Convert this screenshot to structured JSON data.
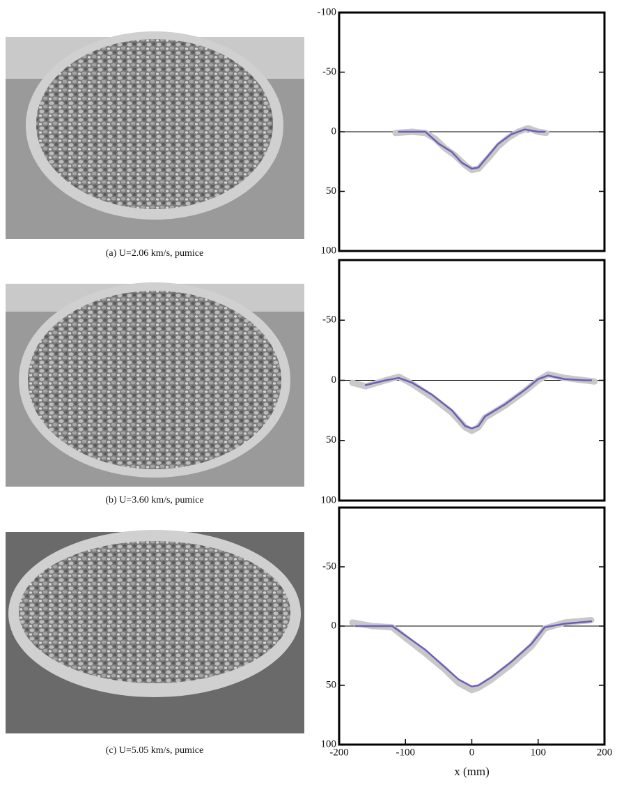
{
  "captions": [
    "(a) U=2.06 km/s, pumice",
    "(b) U=3.60 km/s, pumice",
    "(c) U=5.05 km/s, pumice"
  ],
  "chart_data": [
    {
      "type": "line",
      "xlim": [
        -200,
        200
      ],
      "ylim": [
        -100,
        100
      ],
      "y_inverted": true,
      "yticks": [
        -100,
        -50,
        0,
        50,
        100
      ],
      "hline": 0,
      "series": [
        {
          "color": "#c8c8c8",
          "x": [
            -115,
            -90,
            -70,
            -55,
            -40,
            -25,
            -10,
            0,
            10,
            25,
            40,
            55,
            70,
            85,
            100,
            112
          ],
          "values": [
            1,
            0,
            1,
            6,
            14,
            20,
            28,
            32,
            31,
            22,
            12,
            5,
            0,
            -3,
            0,
            1
          ]
        },
        {
          "color": "#6a5fb8",
          "x": [
            -110,
            -70,
            -50,
            -30,
            -15,
            0,
            10,
            25,
            40,
            60,
            80,
            100,
            110
          ],
          "values": [
            0,
            0,
            10,
            17,
            26,
            31,
            30,
            20,
            10,
            2,
            -2,
            0,
            0
          ]
        }
      ]
    },
    {
      "type": "line",
      "xlim": [
        -200,
        200
      ],
      "ylim": [
        -100,
        100
      ],
      "y_inverted": true,
      "yticks": [
        -50,
        0,
        50,
        100
      ],
      "hline": 0,
      "series": [
        {
          "color": "#c8c8c8",
          "x": [
            -180,
            -160,
            -130,
            -110,
            -90,
            -60,
            -30,
            -10,
            0,
            10,
            20,
            50,
            80,
            100,
            115,
            140,
            170,
            185
          ],
          "values": [
            2,
            5,
            0,
            -3,
            3,
            14,
            27,
            39,
            42,
            39,
            31,
            21,
            9,
            0,
            -5,
            -2,
            0,
            1
          ]
        },
        {
          "color": "#6a5fb8",
          "x": [
            -160,
            -130,
            -110,
            -90,
            -60,
            -30,
            -10,
            0,
            10,
            20,
            50,
            80,
            100,
            115,
            140,
            170,
            180
          ],
          "values": [
            4,
            0,
            -2,
            2,
            12,
            25,
            38,
            40,
            38,
            30,
            20,
            8,
            -1,
            -4,
            -1,
            0,
            0
          ]
        }
      ]
    },
    {
      "type": "line",
      "xlim": [
        -200,
        200
      ],
      "ylim": [
        -100,
        100
      ],
      "y_inverted": true,
      "yticks": [
        -50,
        0,
        50,
        100
      ],
      "xticks": [
        -200,
        -100,
        0,
        100,
        200
      ],
      "xlabel": "x (mm)",
      "hline": 0,
      "series": [
        {
          "color": "#c8c8c8",
          "x": [
            -180,
            -150,
            -120,
            -100,
            -70,
            -40,
            -20,
            0,
            10,
            30,
            60,
            90,
            110,
            140,
            180
          ],
          "values": [
            -3,
            0,
            1,
            10,
            23,
            37,
            48,
            54,
            52,
            45,
            32,
            17,
            2,
            -3,
            -5
          ]
        },
        {
          "color": "#6a5fb8",
          "x": [
            -175,
            -150,
            -120,
            -100,
            -70,
            -40,
            -20,
            0,
            10,
            30,
            60,
            90,
            110,
            140,
            180
          ],
          "values": [
            0,
            0,
            0,
            8,
            20,
            35,
            45,
            51,
            50,
            43,
            30,
            15,
            1,
            -2,
            -4
          ]
        }
      ]
    }
  ]
}
